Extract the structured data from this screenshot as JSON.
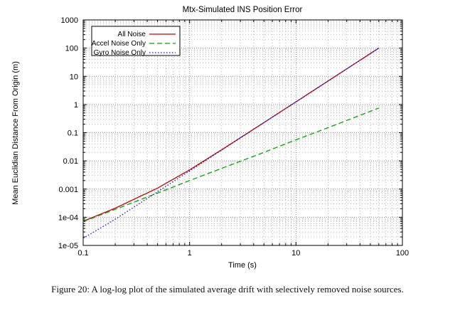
{
  "figure": {
    "caption": "Figure 20: A log-log plot of the simulated average drift with selectively removed noise sources."
  },
  "chart_data": {
    "type": "line",
    "title": "Mtx-Simulated INS Position Error",
    "xlabel": "Time (s)",
    "ylabel": "Mean Euclidian Distance From Origin (m)",
    "x_scale": "log",
    "y_scale": "log",
    "xlim": [
      0.1,
      100
    ],
    "ylim": [
      1e-05,
      1000
    ],
    "x_ticks": [
      0.1,
      1,
      10,
      100
    ],
    "x_tick_labels": [
      "0.1",
      "1",
      "10",
      "100"
    ],
    "y_ticks": [
      1e-05,
      0.0001,
      0.001,
      0.01,
      0.1,
      1,
      10,
      100,
      1000
    ],
    "y_tick_labels": [
      "1e-05",
      "1e-04",
      "0.001",
      "0.01",
      "0.1",
      "1",
      "10",
      "100",
      "1000"
    ],
    "grid": "dotted major and minor gridlines, both axes",
    "legend_position": "top-left inside plot, boxed",
    "series": [
      {
        "name": "All Noise",
        "color": "#cc0000",
        "style": "solid",
        "x": [
          0.1,
          0.2,
          0.5,
          1,
          2,
          5,
          10,
          20,
          50,
          60
        ],
        "y": [
          7.2e-05,
          0.00021,
          0.00108,
          0.0048,
          0.0246,
          0.228,
          1.24,
          6.8,
          64,
          100
        ]
      },
      {
        "name": "Accel Noise Only",
        "color": "#00a800",
        "style": "dashed",
        "x": [
          0.1,
          0.2,
          0.5,
          1,
          2,
          5,
          10,
          20,
          50,
          60
        ],
        "y": [
          7e-05,
          0.00019,
          0.00072,
          0.002,
          0.0054,
          0.02,
          0.056,
          0.15,
          0.57,
          0.75
        ]
      },
      {
        "name": "Gyro Noise Only",
        "color": "#1515cc",
        "style": "dotted",
        "x": [
          0.1,
          0.2,
          0.5,
          1,
          2,
          5,
          10,
          20,
          50,
          60
        ],
        "y": [
          1.8e-05,
          8.5e-05,
          0.0008,
          0.0044,
          0.024,
          0.23,
          1.24,
          6.8,
          64,
          100
        ]
      }
    ]
  }
}
